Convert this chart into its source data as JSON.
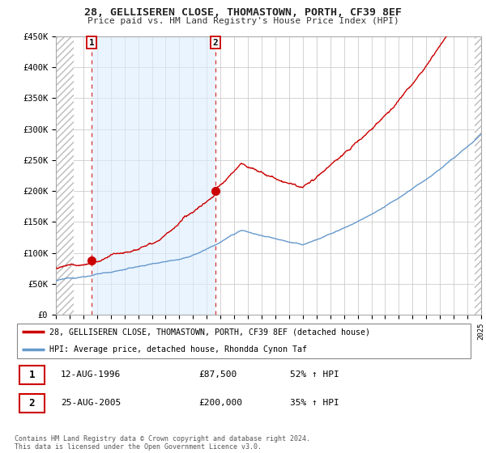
{
  "title": "28, GELLISEREN CLOSE, THOMASTOWN, PORTH, CF39 8EF",
  "subtitle": "Price paid vs. HM Land Registry's House Price Index (HPI)",
  "ylim": [
    0,
    450000
  ],
  "yticks": [
    0,
    50000,
    100000,
    150000,
    200000,
    250000,
    300000,
    350000,
    400000,
    450000
  ],
  "ytick_labels": [
    "£0",
    "£50K",
    "£100K",
    "£150K",
    "£200K",
    "£250K",
    "£300K",
    "£350K",
    "£400K",
    "£450K"
  ],
  "transaction1_year": 1996.617,
  "transaction1_price": 87500,
  "transaction2_year": 2005.645,
  "transaction2_price": 200000,
  "transaction1_label": "1",
  "transaction2_label": "2",
  "legend_line1": "28, GELLISEREN CLOSE, THOMASTOWN, PORTH, CF39 8EF (detached house)",
  "legend_line2": "HPI: Average price, detached house, Rhondda Cynon Taf",
  "table_row1_label": "1",
  "table_row1_date": "12-AUG-1996",
  "table_row1_price": "£87,500",
  "table_row1_hpi": "52% ↑ HPI",
  "table_row2_label": "2",
  "table_row2_date": "25-AUG-2005",
  "table_row2_price": "£200,000",
  "table_row2_hpi": "35% ↑ HPI",
  "footer": "Contains HM Land Registry data © Crown copyright and database right 2024.\nThis data is licensed under the Open Government Licence v3.0.",
  "line_color_red": "#cc0000",
  "line_color_blue": "#6699cc",
  "shade_color": "#ddeeff",
  "hatch_color": "#cccccc"
}
